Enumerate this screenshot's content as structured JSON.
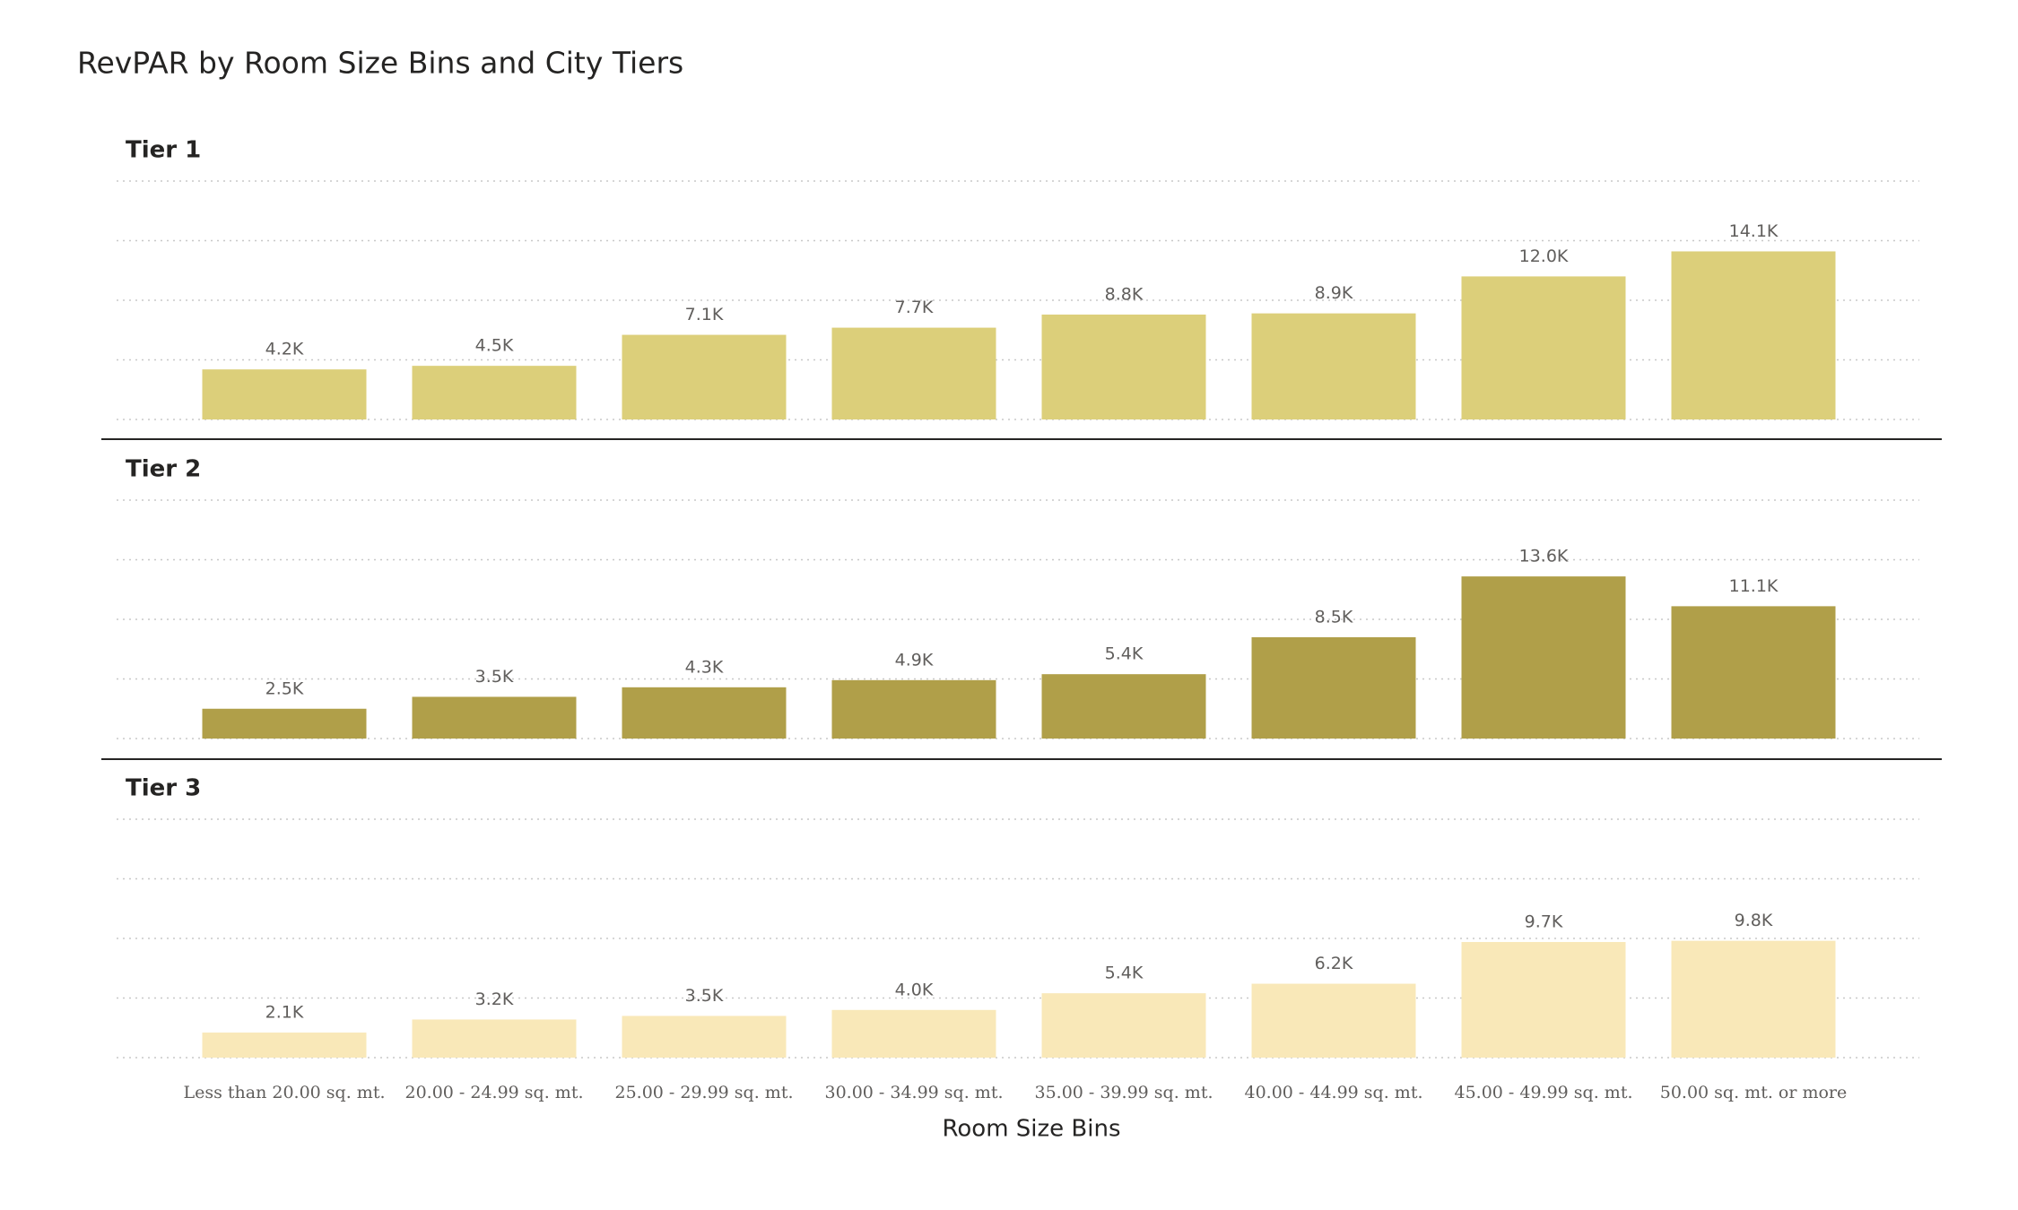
{
  "chart_data": {
    "type": "bar",
    "title": "RevPAR by Room Size Bins and City Tiers",
    "x_label": "Room Size Bins",
    "categories": [
      "Less than 20.00 sq. mt.",
      "20.00 - 24.99 sq. mt.",
      "25.00 - 29.99 sq. mt.",
      "30.00 - 34.99 sq. mt.",
      "35.00 - 39.99 sq. mt.",
      "40.00 - 44.99 sq. mt.",
      "45.00 - 49.99 sq. mt.",
      "50.00 sq. mt. or more"
    ],
    "series": [
      {
        "name": "Tier 1",
        "color": "#dccf7a",
        "values": [
          4200,
          4500,
          7100,
          7700,
          8800,
          8900,
          12000,
          14100
        ],
        "value_labels": [
          "4.2K",
          "4.5K",
          "7.1K",
          "7.7K",
          "8.8K",
          "8.9K",
          "12.0K",
          "14.1K"
        ]
      },
      {
        "name": "Tier 2",
        "color": "#b09f49",
        "values": [
          2500,
          3500,
          4300,
          4900,
          5400,
          8500,
          13600,
          11100
        ],
        "value_labels": [
          "2.5K",
          "3.5K",
          "4.3K",
          "4.9K",
          "5.4K",
          "8.5K",
          "13.6K",
          "11.1K"
        ]
      },
      {
        "name": "Tier 3",
        "color": "#f9e8b8",
        "values": [
          2100,
          3200,
          3500,
          4000,
          5400,
          6200,
          9700,
          9800
        ],
        "value_labels": [
          "2.1K",
          "3.2K",
          "3.5K",
          "4.0K",
          "5.4K",
          "6.2K",
          "9.7K",
          "9.8K"
        ]
      }
    ],
    "ylim": [
      0,
      20000
    ],
    "yticks": [
      0,
      5000,
      10000,
      15000,
      20000
    ],
    "grid": true
  }
}
